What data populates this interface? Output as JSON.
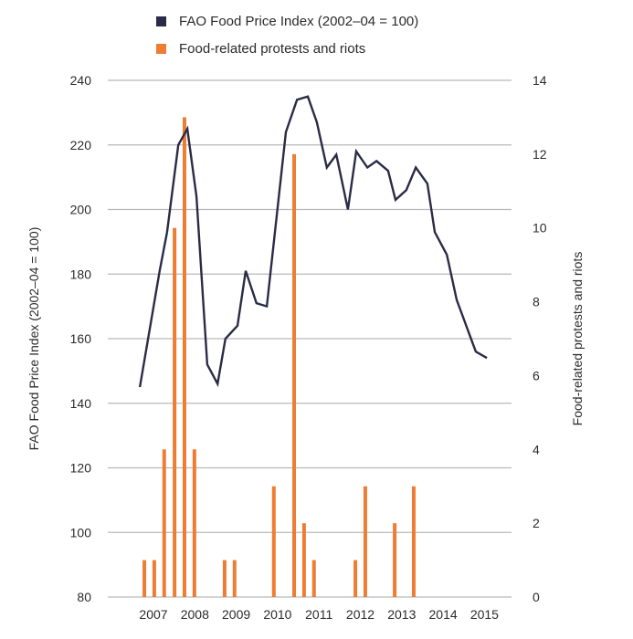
{
  "chart_data": {
    "type": "bar+line",
    "title": "",
    "legend": {
      "placement": "top",
      "entries": [
        {
          "name": "FAO Food Price Index (2002–04 = 100)",
          "color": "#2b2b47",
          "kind": "line"
        },
        {
          "name": "Food-related protests and riots",
          "color": "#ee7d34",
          "kind": "bar"
        }
      ]
    },
    "xlabel": "",
    "x_tick_labels": [
      "2007",
      "2008",
      "2009",
      "2010",
      "2011",
      "2012",
      "2013",
      "2014",
      "2015"
    ],
    "x_ticks": [
      2007,
      2008,
      2009,
      2010,
      2011,
      2012,
      2013,
      2014,
      2015
    ],
    "xlim": [
      2006.0,
      2015.6
    ],
    "y_left": {
      "label": "FAO Food Price Index (2002–04 = 100)",
      "ylim": [
        80,
        240
      ],
      "ticks": [
        80,
        100,
        120,
        140,
        160,
        180,
        200,
        220,
        240
      ]
    },
    "y_right": {
      "label": "Food-related protests and riots",
      "ylim": [
        0,
        14
      ],
      "ticks": [
        0,
        2,
        4,
        6,
        8,
        10,
        12,
        14
      ]
    },
    "grid": true,
    "series": [
      {
        "name": "FAO Food Price Index (2002–04 = 100)",
        "type": "line",
        "axis": "left",
        "color": "#2b2b47",
        "x": [
          2006.67,
          2007.15,
          2007.33,
          2007.6,
          2007.82,
          2008.04,
          2008.3,
          2008.55,
          2008.74,
          2009.03,
          2009.23,
          2009.49,
          2009.74,
          2010.2,
          2010.47,
          2010.73,
          2010.95,
          2011.19,
          2011.42,
          2011.7,
          2011.9,
          2012.17,
          2012.39,
          2012.67,
          2012.85,
          2013.11,
          2013.34,
          2013.62,
          2013.8,
          2014.09,
          2014.33,
          2014.79,
          2015.06
        ],
        "values": [
          145,
          181,
          193,
          220,
          225,
          204,
          152,
          146,
          160,
          164,
          181,
          171,
          170,
          224,
          234,
          235,
          227,
          213,
          217,
          200,
          218,
          213,
          215,
          212,
          203,
          206,
          213,
          208,
          193,
          186,
          172,
          156,
          154
        ]
      },
      {
        "name": "Food-related protests and riots",
        "type": "bar",
        "axis": "right",
        "color": "#ee7d34",
        "x": [
          2006.78,
          2007.02,
          2007.26,
          2007.51,
          2007.75,
          2007.99,
          2008.72,
          2008.96,
          2009.91,
          2010.4,
          2010.64,
          2010.88,
          2011.88,
          2012.12,
          2012.83,
          2013.29
        ],
        "values": [
          1,
          1,
          4,
          10,
          13,
          4,
          1,
          1,
          3,
          12,
          2,
          1,
          1,
          3,
          2,
          3
        ]
      }
    ]
  }
}
